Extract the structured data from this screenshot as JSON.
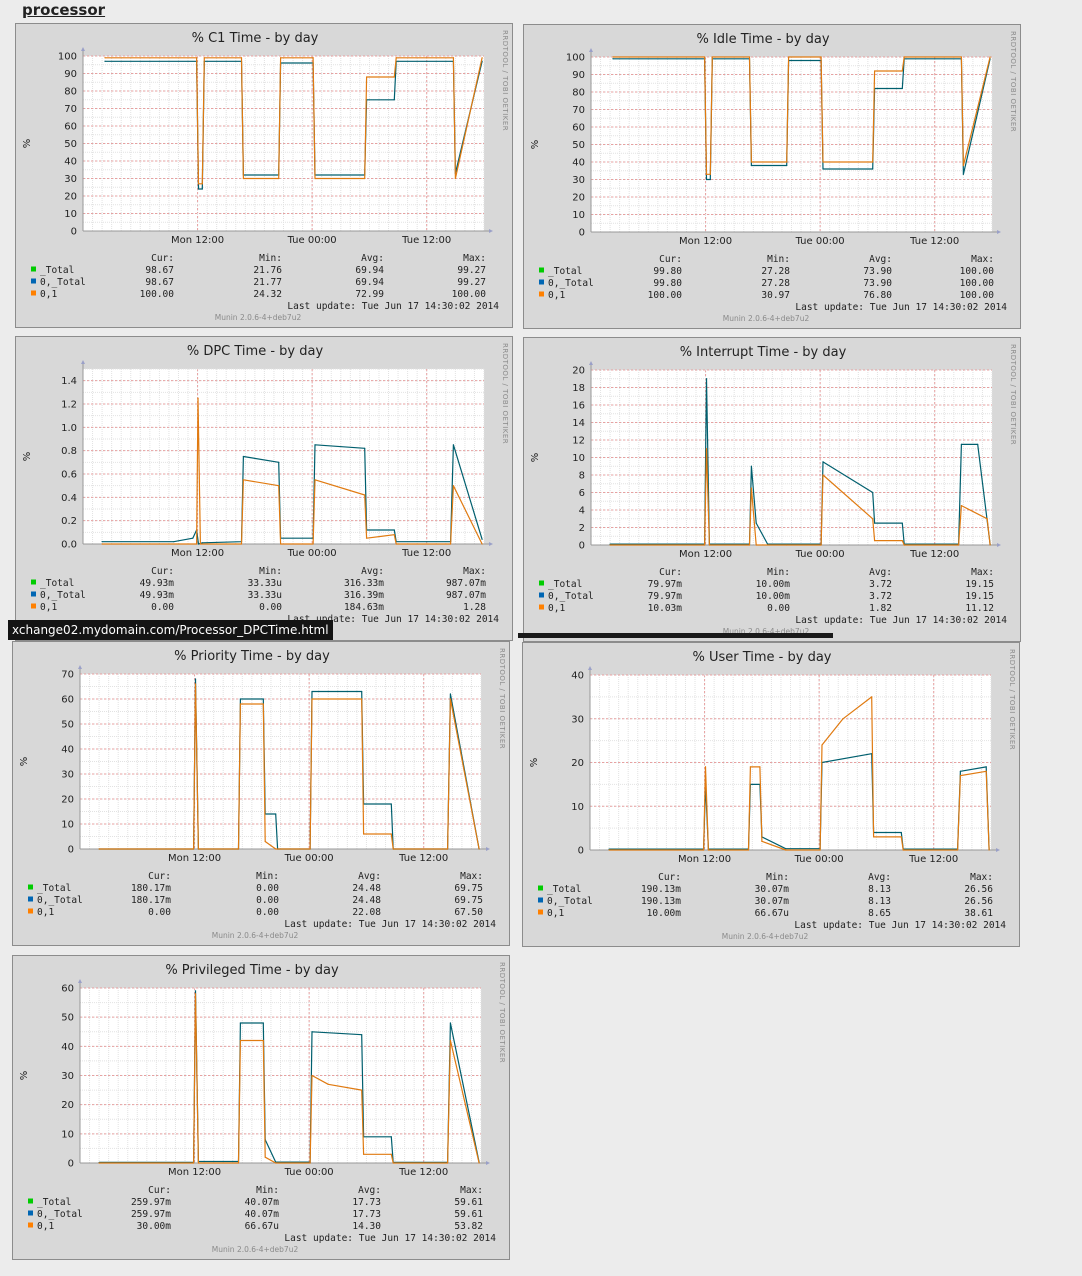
{
  "page": {
    "section_title": "processor",
    "status_url": "xchange02.mydomain.com/Processor_DPCTime.html"
  },
  "common": {
    "x_ticks": [
      "Mon 12:00",
      "Tue 00:00",
      "Tue 12:00"
    ],
    "x_tick_hours": [
      12,
      24,
      36
    ],
    "ylabel": "%",
    "vertical_label": "RRDTOOL / TOBI OETIKER",
    "footer": "Munin 2.0.6-4+deb7u2",
    "col_headers": [
      "Cur:",
      "Min:",
      "Avg:",
      "Max:"
    ],
    "last_update": "Last update:  Tue Jun 17 14:30:02 2014",
    "colors": {
      "_Total": "#00cc00",
      "0,_Total": "#0066b3",
      "0,1": "#ff8000"
    }
  },
  "chart_data": [
    {
      "id": "c1",
      "type": "line",
      "title": "% C1 Time - by day",
      "ylim": [
        0,
        100
      ],
      "yticks": [
        0,
        10,
        20,
        30,
        40,
        50,
        60,
        70,
        80,
        90,
        100
      ],
      "xlim_hours": [
        0,
        42
      ],
      "legend": [
        {
          "name": "_Total",
          "cur": "98.67",
          "min": "21.76",
          "avg": "69.94",
          "max": "99.27"
        },
        {
          "name": "0,_Total",
          "cur": "98.67",
          "min": "21.77",
          "avg": "69.94",
          "max": "99.27"
        },
        {
          "name": "0,1",
          "cur": "100.00",
          "min": "24.32",
          "avg": "72.99",
          "max": "100.00"
        }
      ],
      "series": [
        {
          "name": "0,_Total",
          "color": "#005f6e",
          "x": [
            2.3,
            11.9,
            12.1,
            12.5,
            12.7,
            16.6,
            16.8,
            20.5,
            20.7,
            24.1,
            24.3,
            29.5,
            29.7,
            32.6,
            32.8,
            38.8,
            39.0,
            41.8
          ],
          "y": [
            97,
            97,
            24,
            24,
            97,
            97,
            32,
            32,
            96,
            96,
            32,
            32,
            75,
            75,
            97,
            97,
            33,
            97
          ]
        },
        {
          "name": "0,1",
          "color": "#e07a10",
          "x": [
            2.3,
            11.9,
            12.1,
            12.5,
            12.7,
            16.6,
            16.8,
            20.5,
            20.7,
            24.1,
            24.3,
            29.5,
            29.7,
            32.6,
            32.8,
            38.8,
            39.0,
            41.8
          ],
          "y": [
            99,
            99,
            27,
            27,
            99,
            99,
            30,
            30,
            99,
            99,
            30,
            30,
            88,
            88,
            99,
            99,
            30,
            99
          ]
        }
      ]
    },
    {
      "id": "idle",
      "type": "line",
      "title": "% Idle Time - by day",
      "ylim": [
        0,
        100
      ],
      "yticks": [
        0,
        10,
        20,
        30,
        40,
        50,
        60,
        70,
        80,
        90,
        100
      ],
      "xlim_hours": [
        0,
        42
      ],
      "legend": [
        {
          "name": "_Total",
          "cur": "99.80",
          "min": "27.28",
          "avg": "73.90",
          "max": "100.00"
        },
        {
          "name": "0,_Total",
          "cur": "99.80",
          "min": "27.28",
          "avg": "73.90",
          "max": "100.00"
        },
        {
          "name": "0,1",
          "cur": "100.00",
          "min": "30.97",
          "avg": "76.80",
          "max": "100.00"
        }
      ],
      "series": [
        {
          "name": "0,_Total",
          "color": "#005f6e",
          "x": [
            2.3,
            11.9,
            12.1,
            12.5,
            12.7,
            16.6,
            16.8,
            20.5,
            20.7,
            24.1,
            24.3,
            29.5,
            29.7,
            32.6,
            32.8,
            38.8,
            39.0,
            41.8
          ],
          "y": [
            99,
            99,
            30,
            30,
            99,
            99,
            38,
            38,
            98,
            98,
            36,
            36,
            82,
            82,
            99,
            99,
            33,
            99
          ]
        },
        {
          "name": "0,1",
          "color": "#e07a10",
          "x": [
            2.3,
            11.9,
            12.1,
            12.5,
            12.7,
            16.6,
            16.8,
            20.5,
            20.7,
            24.1,
            24.3,
            29.5,
            29.7,
            32.6,
            32.8,
            38.8,
            39.0,
            41.8
          ],
          "y": [
            100,
            100,
            33,
            33,
            100,
            100,
            40,
            40,
            100,
            100,
            40,
            40,
            92,
            92,
            100,
            100,
            38,
            100
          ]
        }
      ]
    },
    {
      "id": "dpc",
      "type": "line",
      "title": "% DPC Time - by day",
      "ylim": [
        0,
        1.5
      ],
      "yticks": [
        0.0,
        0.2,
        0.4,
        0.6,
        0.8,
        1.0,
        1.2,
        1.4
      ],
      "ytick_labels": [
        "0.0",
        "0.2",
        "0.4",
        "0.6",
        "0.8",
        "1.0",
        "1.2",
        "1.4"
      ],
      "xlim_hours": [
        0,
        42
      ],
      "legend": [
        {
          "name": "_Total",
          "cur": "49.93m",
          "min": "33.33u",
          "avg": "316.33m",
          "max": "987.07m"
        },
        {
          "name": "0,_Total",
          "cur": "49.93m",
          "min": "33.33u",
          "avg": "316.39m",
          "max": "987.07m"
        },
        {
          "name": "0,1",
          "cur": "0.00",
          "min": "0.00",
          "avg": "184.63m",
          "max": "1.28"
        }
      ],
      "series": [
        {
          "name": "0,_Total",
          "color": "#005f6e",
          "x": [
            2.0,
            9.5,
            11.5,
            11.9,
            12.1,
            12.5,
            16.6,
            16.8,
            20.5,
            20.7,
            24.1,
            24.3,
            29.5,
            29.7,
            32.6,
            32.8,
            38.5,
            38.8,
            41.8
          ],
          "y": [
            0.02,
            0.02,
            0.05,
            0.12,
            0.0,
            0.01,
            0.02,
            0.75,
            0.7,
            0.05,
            0.05,
            0.85,
            0.82,
            0.12,
            0.12,
            0.02,
            0.02,
            0.85,
            0.04
          ]
        },
        {
          "name": "0,1",
          "color": "#e07a10",
          "x": [
            2.0,
            11.9,
            12.05,
            12.3,
            16.6,
            16.8,
            20.5,
            20.7,
            24.1,
            24.3,
            29.5,
            29.7,
            32.6,
            32.8,
            38.5,
            38.8,
            41.8
          ],
          "y": [
            0.0,
            0.0,
            1.25,
            0.0,
            0.0,
            0.55,
            0.5,
            0.0,
            0.0,
            0.55,
            0.42,
            0.05,
            0.08,
            0.0,
            0.0,
            0.5,
            0.0
          ]
        }
      ]
    },
    {
      "id": "interrupt",
      "type": "line",
      "title": "% Interrupt Time - by day",
      "ylim": [
        0,
        20
      ],
      "yticks": [
        0,
        2,
        4,
        6,
        8,
        10,
        12,
        14,
        16,
        18,
        20
      ],
      "xlim_hours": [
        0,
        42
      ],
      "legend": [
        {
          "name": "_Total",
          "cur": "79.97m",
          "min": "10.00m",
          "avg": "3.72",
          "max": "19.15"
        },
        {
          "name": "0,_Total",
          "cur": "79.97m",
          "min": "10.00m",
          "avg": "3.72",
          "max": "19.15"
        },
        {
          "name": "0,1",
          "cur": "10.03m",
          "min": "0.00",
          "avg": "1.82",
          "max": "11.12"
        }
      ],
      "series": [
        {
          "name": "0,_Total",
          "color": "#005f6e",
          "x": [
            2.0,
            11.9,
            12.1,
            12.4,
            16.6,
            16.8,
            17.3,
            18.5,
            20.5,
            24.1,
            24.3,
            29.5,
            29.7,
            32.6,
            32.8,
            38.5,
            38.8,
            40.5,
            41.8
          ],
          "y": [
            0.1,
            0.1,
            19.0,
            0.1,
            0.1,
            9.0,
            2.5,
            0.1,
            0.1,
            0.1,
            9.5,
            6.0,
            2.5,
            2.5,
            0.1,
            0.1,
            11.5,
            11.5,
            0.1
          ]
        },
        {
          "name": "0,1",
          "color": "#e07a10",
          "x": [
            2.0,
            11.9,
            12.1,
            12.4,
            16.6,
            16.8,
            17.3,
            20.5,
            24.1,
            24.3,
            29.5,
            29.7,
            32.6,
            32.8,
            38.5,
            38.8,
            41.5,
            41.8
          ],
          "y": [
            0.0,
            0.0,
            11.0,
            0.0,
            0.0,
            6.5,
            0.0,
            0.0,
            0.0,
            8.0,
            3.0,
            0.5,
            0.5,
            0.0,
            0.0,
            4.5,
            3.0,
            0.0
          ]
        }
      ]
    },
    {
      "id": "priority",
      "type": "line",
      "title": "% Priority Time - by day",
      "ylim": [
        0,
        70
      ],
      "yticks": [
        0,
        10,
        20,
        30,
        40,
        50,
        60,
        70
      ],
      "xlim_hours": [
        0,
        42
      ],
      "legend": [
        {
          "name": "_Total",
          "cur": "180.17m",
          "min": "0.00",
          "avg": "24.48",
          "max": "69.75"
        },
        {
          "name": "0,_Total",
          "cur": "180.17m",
          "min": "0.00",
          "avg": "24.48",
          "max": "69.75"
        },
        {
          "name": "0,1",
          "cur": "0.00",
          "min": "0.00",
          "avg": "22.08",
          "max": "67.50"
        }
      ],
      "series": [
        {
          "name": "0,_Total",
          "color": "#005f6e",
          "x": [
            2.0,
            11.9,
            12.1,
            12.4,
            16.6,
            16.8,
            19.2,
            19.4,
            20.5,
            20.7,
            24.1,
            24.3,
            29.5,
            29.7,
            32.6,
            32.8,
            38.5,
            38.8,
            41.8
          ],
          "y": [
            0,
            0,
            68,
            0,
            0,
            60,
            60,
            14,
            14,
            0,
            0,
            63,
            63,
            18,
            18,
            0,
            0,
            62,
            0
          ]
        },
        {
          "name": "0,1",
          "color": "#e07a10",
          "x": [
            2.0,
            11.9,
            12.1,
            12.4,
            16.6,
            16.8,
            19.2,
            19.4,
            20.5,
            24.1,
            24.3,
            29.5,
            29.7,
            32.6,
            32.8,
            38.5,
            38.8,
            41.8
          ],
          "y": [
            0,
            0,
            66,
            0,
            0,
            58,
            58,
            3,
            0,
            0,
            60,
            60,
            6,
            6,
            0,
            0,
            60,
            0
          ]
        }
      ]
    },
    {
      "id": "user",
      "type": "line",
      "title": "% User Time - by day",
      "ylim": [
        0,
        40
      ],
      "yticks": [
        0,
        10,
        20,
        30,
        40
      ],
      "xlim_hours": [
        0,
        42
      ],
      "legend": [
        {
          "name": "_Total",
          "cur": "190.13m",
          "min": "30.07m",
          "avg": "8.13",
          "max": "26.56"
        },
        {
          "name": "0,_Total",
          "cur": "190.13m",
          "min": "30.07m",
          "avg": "8.13",
          "max": "26.56"
        },
        {
          "name": "0,1",
          "cur": "10.00m",
          "min": "66.67u",
          "avg": "8.65",
          "max": "38.61"
        }
      ],
      "series": [
        {
          "name": "0,_Total",
          "color": "#005f6e",
          "x": [
            2.0,
            11.9,
            12.1,
            12.4,
            16.6,
            16.8,
            17.8,
            18.0,
            20.5,
            24.1,
            24.3,
            29.5,
            29.7,
            32.6,
            32.8,
            38.5,
            38.8,
            41.5,
            41.8
          ],
          "y": [
            0.2,
            0.2,
            15.0,
            0.2,
            0.2,
            15.0,
            15.0,
            3.0,
            0.3,
            0.3,
            20.0,
            22.0,
            4.0,
            4.0,
            0.2,
            0.2,
            18.0,
            19.0,
            0.2
          ]
        },
        {
          "name": "0,1",
          "color": "#e07a10",
          "x": [
            2.0,
            11.9,
            12.1,
            12.4,
            16.6,
            16.8,
            17.8,
            18.0,
            20.5,
            24.1,
            24.3,
            26.5,
            29.5,
            29.7,
            32.6,
            32.8,
            38.5,
            38.8,
            41.5,
            41.8
          ],
          "y": [
            0.0,
            0.0,
            19.0,
            0.0,
            0.0,
            19.0,
            19.0,
            2.0,
            0.0,
            0.0,
            24.0,
            30.0,
            35.0,
            3.0,
            3.0,
            0.0,
            0.0,
            17.0,
            18.0,
            0.0
          ]
        }
      ]
    },
    {
      "id": "privileged",
      "type": "line",
      "title": "% Privileged Time - by day",
      "ylim": [
        0,
        60
      ],
      "yticks": [
        0,
        10,
        20,
        30,
        40,
        50,
        60
      ],
      "xlim_hours": [
        0,
        42
      ],
      "legend": [
        {
          "name": "_Total",
          "cur": "259.97m",
          "min": "40.07m",
          "avg": "17.73",
          "max": "59.61"
        },
        {
          "name": "0,_Total",
          "cur": "259.97m",
          "min": "40.07m",
          "avg": "17.73",
          "max": "59.61"
        },
        {
          "name": "0,1",
          "cur": "30.00m",
          "min": "66.67u",
          "avg": "14.30",
          "max": "53.82"
        }
      ],
      "series": [
        {
          "name": "0,_Total",
          "color": "#005f6e",
          "x": [
            2.0,
            11.9,
            12.1,
            12.4,
            16.6,
            16.8,
            19.2,
            19.4,
            20.5,
            24.1,
            24.3,
            29.5,
            29.7,
            32.6,
            32.8,
            38.5,
            38.8,
            41.8
          ],
          "y": [
            0.2,
            0.2,
            59.0,
            0.5,
            0.5,
            48.0,
            48.0,
            8.0,
            0.3,
            0.3,
            45.0,
            44.0,
            9.0,
            9.0,
            0.2,
            0.2,
            48.0,
            0.3
          ]
        },
        {
          "name": "0,1",
          "color": "#e07a10",
          "x": [
            2.0,
            11.9,
            12.1,
            12.4,
            16.6,
            16.8,
            19.2,
            19.4,
            20.5,
            24.1,
            24.3,
            26.0,
            29.5,
            29.7,
            32.6,
            32.8,
            38.5,
            38.8,
            41.8
          ],
          "y": [
            0.0,
            0.0,
            58.0,
            0.0,
            0.0,
            42.0,
            42.0,
            2.0,
            0.0,
            0.0,
            30.0,
            27.0,
            25.0,
            3.0,
            3.0,
            0.0,
            0.0,
            42.0,
            0.0
          ]
        }
      ]
    }
  ]
}
